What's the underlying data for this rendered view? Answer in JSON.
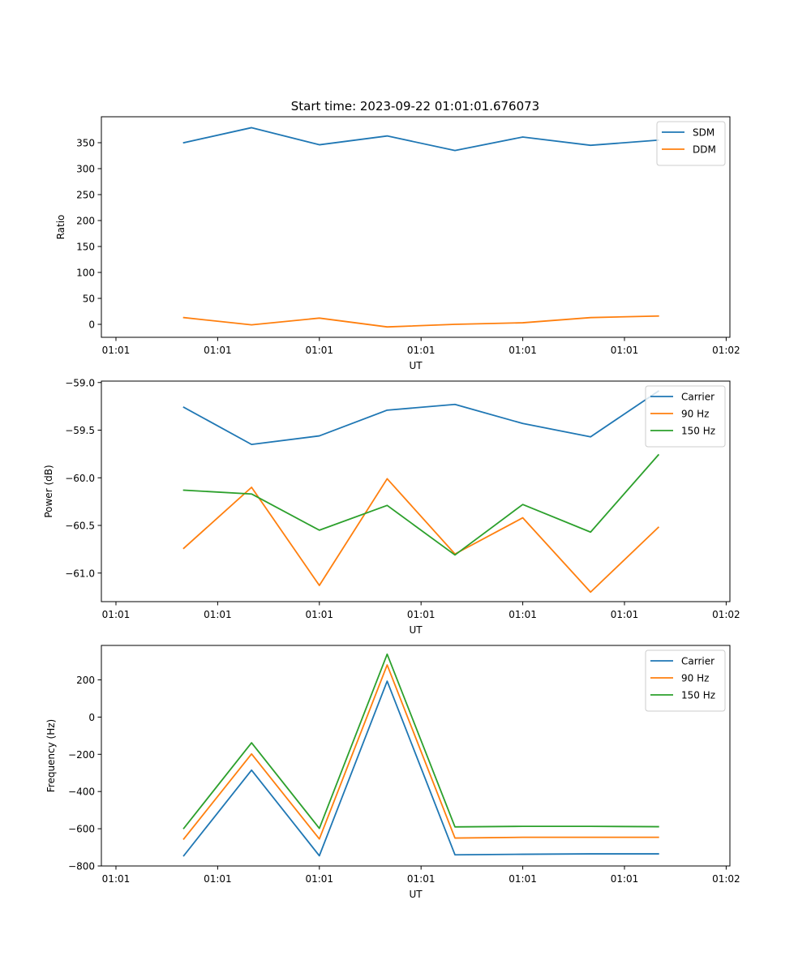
{
  "figure_title": "Start time: 2023-09-22 01:01:01.676073",
  "colors": {
    "blue": "#1f77b4",
    "orange": "#ff7f0e",
    "green": "#2ca02c"
  },
  "chart_data": [
    {
      "type": "line",
      "title": "Start time: 2023-09-22 01:01:01.676073",
      "xlabel": "UT",
      "ylabel": "Ratio",
      "x": [
        1,
        2,
        3,
        4,
        5,
        6,
        7,
        8
      ],
      "xlim": [
        -0.215,
        9.055
      ],
      "x_ticks": [
        0,
        1.5,
        3,
        4.5,
        6,
        7.5,
        9
      ],
      "x_tick_labels": [
        "01:01",
        "01:01",
        "01:01",
        "01:01",
        "01:01",
        "01:01",
        "01:02"
      ],
      "ylim": [
        -25,
        400
      ],
      "y_ticks": [
        0,
        50,
        100,
        150,
        200,
        250,
        300,
        350
      ],
      "y_tick_labels": [
        "0",
        "50",
        "100",
        "150",
        "200",
        "250",
        "300",
        "350"
      ],
      "legend_position": "top-right",
      "series": [
        {
          "name": "SDM",
          "color": "#1f77b4",
          "values": [
            350,
            379,
            346,
            363,
            335,
            361,
            345,
            355
          ]
        },
        {
          "name": "DDM",
          "color": "#ff7f0e",
          "values": [
            13,
            -1,
            12,
            -5,
            0,
            3,
            13,
            16
          ]
        }
      ]
    },
    {
      "type": "line",
      "title": "",
      "xlabel": "UT",
      "ylabel": "Power (dB)",
      "x": [
        1,
        2,
        3,
        4,
        5,
        6,
        7,
        8
      ],
      "xlim": [
        -0.215,
        9.055
      ],
      "x_ticks": [
        0,
        1.5,
        3,
        4.5,
        6,
        7.5,
        9
      ],
      "x_tick_labels": [
        "01:01",
        "01:01",
        "01:01",
        "01:01",
        "01:01",
        "01:01",
        "01:02"
      ],
      "ylim": [
        -61.3,
        -58.985
      ],
      "y_ticks": [
        -61.0,
        -60.5,
        -60.0,
        -59.5,
        -59.0
      ],
      "y_tick_labels": [
        "−61.0",
        "−60.5",
        "−60.0",
        "−59.5",
        "−59.0"
      ],
      "legend_position": "top-right",
      "series": [
        {
          "name": "Carrier",
          "color": "#1f77b4",
          "values": [
            -59.26,
            -59.65,
            -59.56,
            -59.29,
            -59.23,
            -59.43,
            -59.57,
            -59.09
          ]
        },
        {
          "name": "90 Hz",
          "color": "#ff7f0e",
          "values": [
            -60.74,
            -60.1,
            -61.13,
            -60.01,
            -60.8,
            -60.42,
            -61.2,
            -60.52
          ]
        },
        {
          "name": "150 Hz",
          "color": "#2ca02c",
          "values": [
            -60.13,
            -60.17,
            -60.55,
            -60.29,
            -60.81,
            -60.28,
            -60.57,
            -59.76
          ]
        }
      ]
    },
    {
      "type": "line",
      "title": "",
      "xlabel": "UT",
      "ylabel": "Frequency (Hz)",
      "x": [
        1,
        2,
        3,
        4,
        5,
        6,
        7,
        8
      ],
      "xlim": [
        -0.215,
        9.055
      ],
      "x_ticks": [
        0,
        1.5,
        3,
        4.5,
        6,
        7.5,
        9
      ],
      "x_tick_labels": [
        "01:01",
        "01:01",
        "01:01",
        "01:01",
        "01:01",
        "01:01",
        "01:02"
      ],
      "ylim": [
        -800,
        385
      ],
      "y_ticks": [
        -800,
        -600,
        -400,
        -200,
        0,
        200
      ],
      "y_tick_labels": [
        "−800",
        "−600",
        "−400",
        "−200",
        "0",
        "200"
      ],
      "legend_position": "top-right",
      "series": [
        {
          "name": "Carrier",
          "color": "#1f77b4",
          "values": [
            -745,
            -285,
            -745,
            193,
            -740,
            -737,
            -735,
            -735
          ]
        },
        {
          "name": "90 Hz",
          "color": "#ff7f0e",
          "values": [
            -655,
            -198,
            -655,
            280,
            -650,
            -646,
            -646,
            -646
          ]
        },
        {
          "name": "150 Hz",
          "color": "#2ca02c",
          "values": [
            -598,
            -138,
            -598,
            338,
            -590,
            -587,
            -587,
            -589
          ]
        }
      ]
    }
  ]
}
